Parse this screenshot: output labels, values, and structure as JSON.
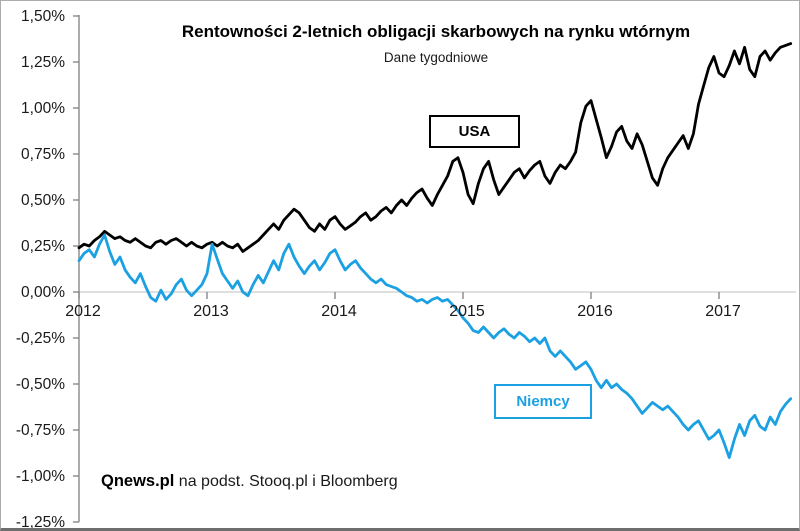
{
  "chart": {
    "title": "Rentowności 2-letnich obligacji skarbowych na rynku wtórnym",
    "subtitle": "Dane tygodniowe",
    "source_bold": "Qnews.pl",
    "source_rest": " na podst. Stooq.pl i Bloomberg",
    "series_labels": {
      "usa": "USA",
      "niemcy": "Niemcy"
    },
    "colors": {
      "usa_line": "#000000",
      "niemcy_line": "#1BA0E2",
      "zero_gridline": "#bfbfbf",
      "axis": "#808080",
      "tick_text": "#1a1a1a"
    }
  },
  "chart_data": {
    "type": "line",
    "title": "Rentowności 2-letnich obligacji skarbowych na rynku wtórnym",
    "subtitle": "Dane tygodniowe",
    "xlabel": "",
    "ylabel": "",
    "xlim": [
      2012.0,
      2017.65
    ],
    "ylim": [
      -1.25,
      1.5
    ],
    "grid": "horizontal zero line only",
    "legend": "boxed labels placed on plot",
    "y_ticks": [
      {
        "label": "1,50%",
        "value": 1.5
      },
      {
        "label": "1,25%",
        "value": 1.25
      },
      {
        "label": "1,00%",
        "value": 1.0
      },
      {
        "label": "0,75%",
        "value": 0.75
      },
      {
        "label": "0,50%",
        "value": 0.5
      },
      {
        "label": "0,25%",
        "value": 0.25
      },
      {
        "label": "0,00%",
        "value": 0.0
      },
      {
        "label": "-0,25%",
        "value": -0.25
      },
      {
        "label": "-0,50%",
        "value": -0.5
      },
      {
        "label": "-0,75%",
        "value": -0.75
      },
      {
        "label": "-1,00%",
        "value": -1.0
      },
      {
        "label": "-1,25%",
        "value": -1.25
      }
    ],
    "x_ticks": [
      {
        "label": "2012",
        "value": 2012
      },
      {
        "label": "2013",
        "value": 2013
      },
      {
        "label": "2014",
        "value": 2014
      },
      {
        "label": "2015",
        "value": 2015
      },
      {
        "label": "2016",
        "value": 2016
      },
      {
        "label": "2017",
        "value": 2017
      }
    ],
    "x_start": 2012.0,
    "x_step": 0.04,
    "series": [
      {
        "name": "USA",
        "color": "#000000",
        "values": [
          0.24,
          0.26,
          0.25,
          0.28,
          0.3,
          0.33,
          0.31,
          0.29,
          0.3,
          0.28,
          0.27,
          0.29,
          0.27,
          0.25,
          0.24,
          0.27,
          0.28,
          0.26,
          0.28,
          0.29,
          0.27,
          0.25,
          0.27,
          0.25,
          0.24,
          0.26,
          0.27,
          0.25,
          0.27,
          0.25,
          0.24,
          0.26,
          0.22,
          0.24,
          0.26,
          0.28,
          0.31,
          0.34,
          0.37,
          0.34,
          0.39,
          0.42,
          0.45,
          0.43,
          0.39,
          0.35,
          0.33,
          0.37,
          0.34,
          0.39,
          0.41,
          0.37,
          0.34,
          0.36,
          0.38,
          0.41,
          0.43,
          0.39,
          0.41,
          0.44,
          0.46,
          0.43,
          0.47,
          0.5,
          0.47,
          0.51,
          0.54,
          0.56,
          0.51,
          0.47,
          0.53,
          0.58,
          0.63,
          0.71,
          0.73,
          0.65,
          0.53,
          0.48,
          0.59,
          0.67,
          0.71,
          0.61,
          0.53,
          0.57,
          0.61,
          0.65,
          0.67,
          0.62,
          0.66,
          0.69,
          0.71,
          0.63,
          0.59,
          0.65,
          0.69,
          0.67,
          0.71,
          0.76,
          0.92,
          1.01,
          1.04,
          0.94,
          0.84,
          0.73,
          0.79,
          0.87,
          0.9,
          0.82,
          0.78,
          0.86,
          0.8,
          0.71,
          0.62,
          0.58,
          0.67,
          0.73,
          0.77,
          0.81,
          0.85,
          0.78,
          0.86,
          1.02,
          1.12,
          1.22,
          1.28,
          1.19,
          1.17,
          1.23,
          1.31,
          1.24,
          1.33,
          1.21,
          1.17,
          1.28,
          1.31,
          1.26,
          1.3,
          1.33,
          1.34,
          1.35
        ]
      },
      {
        "name": "Niemcy",
        "color": "#1BA0E2",
        "values": [
          0.17,
          0.21,
          0.23,
          0.19,
          0.26,
          0.31,
          0.22,
          0.15,
          0.19,
          0.12,
          0.08,
          0.05,
          0.1,
          0.03,
          -0.03,
          -0.05,
          0.01,
          -0.04,
          -0.01,
          0.04,
          0.07,
          0.01,
          -0.02,
          0.01,
          0.04,
          0.1,
          0.26,
          0.18,
          0.1,
          0.06,
          0.02,
          0.06,
          0.0,
          -0.02,
          0.04,
          0.09,
          0.05,
          0.11,
          0.17,
          0.12,
          0.21,
          0.26,
          0.19,
          0.14,
          0.1,
          0.14,
          0.17,
          0.12,
          0.16,
          0.21,
          0.23,
          0.17,
          0.12,
          0.15,
          0.17,
          0.13,
          0.1,
          0.07,
          0.05,
          0.07,
          0.04,
          0.03,
          0.02,
          0.0,
          -0.02,
          -0.03,
          -0.05,
          -0.04,
          -0.06,
          -0.04,
          -0.03,
          -0.05,
          -0.04,
          -0.07,
          -0.1,
          -0.14,
          -0.17,
          -0.21,
          -0.22,
          -0.19,
          -0.22,
          -0.25,
          -0.22,
          -0.2,
          -0.23,
          -0.25,
          -0.22,
          -0.24,
          -0.27,
          -0.25,
          -0.28,
          -0.25,
          -0.32,
          -0.35,
          -0.32,
          -0.35,
          -0.38,
          -0.42,
          -0.4,
          -0.38,
          -0.42,
          -0.48,
          -0.52,
          -0.48,
          -0.52,
          -0.5,
          -0.53,
          -0.55,
          -0.58,
          -0.62,
          -0.66,
          -0.63,
          -0.6,
          -0.62,
          -0.64,
          -0.62,
          -0.65,
          -0.68,
          -0.72,
          -0.75,
          -0.72,
          -0.7,
          -0.75,
          -0.8,
          -0.78,
          -0.75,
          -0.82,
          -0.9,
          -0.8,
          -0.72,
          -0.78,
          -0.7,
          -0.67,
          -0.73,
          -0.75,
          -0.68,
          -0.72,
          -0.65,
          -0.61,
          -0.58
        ]
      }
    ]
  }
}
